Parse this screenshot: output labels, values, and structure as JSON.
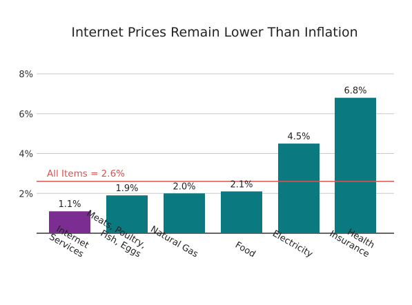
{
  "chart_data": {
    "type": "bar",
    "title": "Internet Prices Remain Lower Than Inflation",
    "categories": [
      [
        "Internet",
        "Services"
      ],
      [
        "Meats, Poultry,",
        "Fish, Eggs"
      ],
      [
        "Natural Gas"
      ],
      [
        "Food"
      ],
      [
        "Electricity"
      ],
      [
        "Health",
        "Insurance"
      ]
    ],
    "values": [
      1.1,
      1.9,
      2.0,
      2.1,
      4.5,
      6.8
    ],
    "value_labels": [
      "1.1%",
      "1.9%",
      "2.0%",
      "2.1%",
      "4.5%",
      "6.8%"
    ],
    "bar_colors": [
      "#7b2d91",
      "#0b7a80",
      "#0b7a80",
      "#0b7a80",
      "#0b7a80",
      "#0b7a80"
    ],
    "ylim": [
      0,
      8
    ],
    "yticks": [
      2,
      4,
      6,
      8
    ],
    "ytick_labels": [
      "2%",
      "4%",
      "6%",
      "8%"
    ],
    "grid": true,
    "reference_line": {
      "value": 2.6,
      "label": "All Items = 2.6%",
      "color": "#d9534f"
    }
  }
}
